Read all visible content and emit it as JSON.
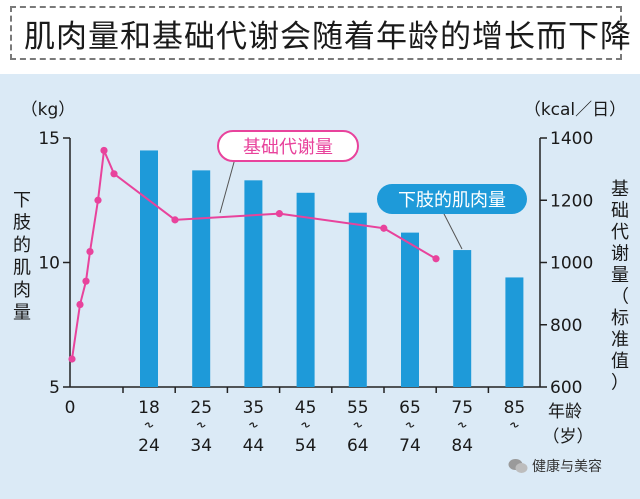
{
  "title": "肌肉量和基础代谢会随着年龄的增长而下降",
  "watermark": "健康与美容",
  "chart_data": {
    "type": "bar+line",
    "categories": [
      {
        "top": "18",
        "bottom": "24"
      },
      {
        "top": "25",
        "bottom": "34"
      },
      {
        "top": "35",
        "bottom": "44"
      },
      {
        "top": "45",
        "bottom": "54"
      },
      {
        "top": "55",
        "bottom": "64"
      },
      {
        "top": "65",
        "bottom": "74"
      },
      {
        "top": "75",
        "bottom": "84"
      },
      {
        "top": "85",
        "bottom": ""
      }
    ],
    "x_zero_label": "0",
    "xlabel": [
      "年龄",
      "（岁）"
    ],
    "bars": {
      "name": "下肢的肌肉量",
      "values": [
        14.5,
        13.7,
        13.3,
        12.8,
        12.0,
        11.2,
        10.5,
        9.4
      ],
      "color": "#1e9ad9"
    },
    "line": {
      "name": "基础代谢量",
      "early": [
        {
          "x": 0.1,
          "y": 690
        },
        {
          "x": 0.5,
          "y": 865
        },
        {
          "x": 0.8,
          "y": 940
        },
        {
          "x": 1.0,
          "y": 1035
        },
        {
          "x": 1.4,
          "y": 1200
        },
        {
          "x": 1.7,
          "y": 1360
        },
        {
          "x": 2.2,
          "y": 1285
        }
      ],
      "by_category": [
        1137,
        null,
        1157,
        null,
        1110,
        1012,
        null,
        null
      ],
      "color": "#e8439c"
    },
    "y_left": {
      "label": "下肢的肌肉量",
      "unit": "（kg）",
      "min": 5,
      "max": 15,
      "ticks": [
        5,
        10,
        15
      ]
    },
    "y_right": {
      "label": "基础代谢量（标准值）",
      "unit": "（kcal／日）",
      "min": 600,
      "max": 1400,
      "ticks": [
        600,
        800,
        1000,
        1200,
        1400
      ]
    }
  }
}
